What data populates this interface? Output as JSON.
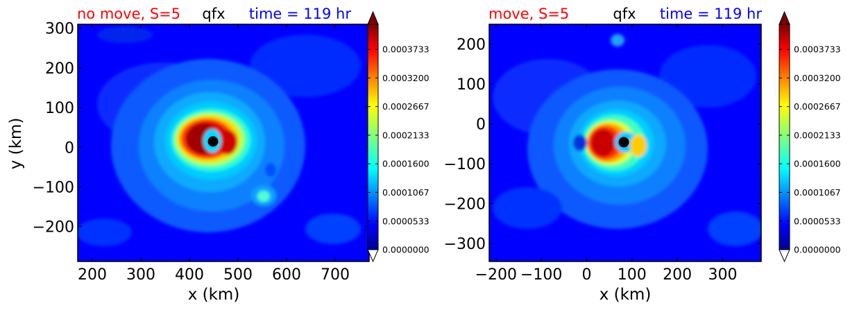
{
  "colors": {
    "left_title": "#ff0000",
    "center_title": "#000000",
    "right_title": "#0000ff"
  },
  "chart_data": [
    {
      "type": "heatmap",
      "title_left": "no move, S=5",
      "title_center": "qfx",
      "title_right": "time = 119 hr",
      "xlabel": "x (km)",
      "ylabel": "y (km)",
      "xlim": [
        170,
        770
      ],
      "ylim": [
        -288,
        310
      ],
      "xticks": [
        200,
        300,
        400,
        500,
        600,
        700
      ],
      "xtick_labels": [
        "200",
        "300",
        "400",
        "500",
        "600",
        "700"
      ],
      "yticks": [
        -200,
        -100,
        0,
        100,
        200,
        300
      ],
      "ytick_labels": [
        "−200",
        "−100",
        "0",
        "100",
        "200",
        "300"
      ],
      "storm_center": [
        466,
        12
      ],
      "colorbar": {
        "ticks": [
          "0.0000000",
          "0.0000533",
          "0.0001067",
          "0.0001600",
          "0.0002133",
          "0.0002667",
          "0.0003200",
          "0.0003733"
        ],
        "min": 0,
        "max": 0.00042,
        "extend": "both"
      }
    },
    {
      "type": "heatmap",
      "title_left": "move, S=5",
      "title_center": "qfx",
      "title_right": "time = 119 hr",
      "xlabel": "x (km)",
      "ylabel": "",
      "xlim": [
        -215,
        385
      ],
      "ylim": [
        -345,
        250
      ],
      "xticks": [
        -200,
        -100,
        0,
        100,
        200,
        300
      ],
      "xtick_labels": [
        "−200",
        "−100",
        "0",
        "100",
        "200",
        "300"
      ],
      "yticks": [
        -300,
        -200,
        -100,
        0,
        100,
        200
      ],
      "ytick_labels": [
        "−300",
        "−200",
        "−100",
        "0",
        "100",
        "200"
      ],
      "storm_center": [
        83,
        -49
      ],
      "colorbar": {
        "ticks": [
          "0.0000000",
          "0.0000533",
          "0.0001067",
          "0.0001600",
          "0.0002133",
          "0.0002667",
          "0.0003200",
          "0.0003733"
        ],
        "min": 0,
        "max": 0.00042,
        "extend": "both"
      }
    }
  ]
}
